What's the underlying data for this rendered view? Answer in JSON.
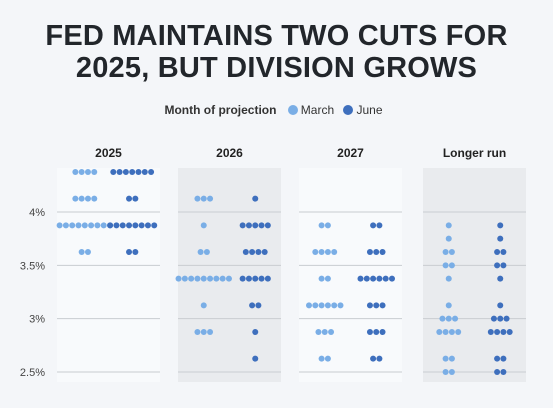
{
  "title_lines": [
    "FED MAINTAINS TWO CUTS FOR",
    "2025, BUT DIVISION GROWS"
  ],
  "legend": {
    "title": "Month of projection",
    "items": [
      {
        "label": "March",
        "color": "#7aaee6"
      },
      {
        "label": "June",
        "color": "#3e6fbd"
      }
    ]
  },
  "chart_data": {
    "type": "scatter",
    "subtype": "dot-plot",
    "title": "FED MAINTAINS TWO CUTS FOR 2025, BUT DIVISION GROWS",
    "legend_title": "Month of projection",
    "legend_placement": "top-center",
    "y_ticks": [
      "4%",
      "3.5%",
      "3%",
      "2.5%"
    ],
    "ylim": [
      2.375,
      4.375
    ],
    "grid": true,
    "series": [
      {
        "name": "March",
        "color": "#7aaee6"
      },
      {
        "name": "June",
        "color": "#3e6fbd"
      }
    ],
    "panels": [
      {
        "label": "2025",
        "shaded": false,
        "March": [
          {
            "y": 4.375,
            "n": 4
          },
          {
            "y": 4.125,
            "n": 4
          },
          {
            "y": 3.875,
            "n": 9
          },
          {
            "y": 3.625,
            "n": 2
          }
        ],
        "June": [
          {
            "y": 4.375,
            "n": 7
          },
          {
            "y": 4.125,
            "n": 2
          },
          {
            "y": 3.875,
            "n": 8
          },
          {
            "y": 3.625,
            "n": 2
          }
        ]
      },
      {
        "label": "2026",
        "shaded": true,
        "March": [
          {
            "y": 4.125,
            "n": 3
          },
          {
            "y": 3.875,
            "n": 1
          },
          {
            "y": 3.625,
            "n": 2
          },
          {
            "y": 3.375,
            "n": 9
          },
          {
            "y": 3.125,
            "n": 1
          },
          {
            "y": 2.875,
            "n": 3
          }
        ],
        "June": [
          {
            "y": 4.125,
            "n": 1
          },
          {
            "y": 3.875,
            "n": 5
          },
          {
            "y": 3.625,
            "n": 4
          },
          {
            "y": 3.375,
            "n": 5
          },
          {
            "y": 3.125,
            "n": 2
          },
          {
            "y": 2.875,
            "n": 1
          },
          {
            "y": 2.625,
            "n": 1
          }
        ]
      },
      {
        "label": "2027",
        "shaded": false,
        "March": [
          {
            "y": 3.875,
            "n": 2
          },
          {
            "y": 3.625,
            "n": 4
          },
          {
            "y": 3.375,
            "n": 2
          },
          {
            "y": 3.125,
            "n": 6
          },
          {
            "y": 2.875,
            "n": 3
          },
          {
            "y": 2.625,
            "n": 2
          }
        ],
        "June": [
          {
            "y": 3.875,
            "n": 2
          },
          {
            "y": 3.625,
            "n": 3
          },
          {
            "y": 3.375,
            "n": 6
          },
          {
            "y": 3.125,
            "n": 3
          },
          {
            "y": 2.875,
            "n": 3
          },
          {
            "y": 2.625,
            "n": 2
          }
        ]
      },
      {
        "label": "Longer run",
        "shaded": true,
        "March": [
          {
            "y": 3.875,
            "n": 1
          },
          {
            "y": 3.75,
            "n": 1
          },
          {
            "y": 3.625,
            "n": 2
          },
          {
            "y": 3.5,
            "n": 2
          },
          {
            "y": 3.375,
            "n": 1
          },
          {
            "y": 3.125,
            "n": 1
          },
          {
            "y": 3.0,
            "n": 3
          },
          {
            "y": 2.875,
            "n": 4
          },
          {
            "y": 2.625,
            "n": 2
          },
          {
            "y": 2.5,
            "n": 2
          }
        ],
        "June": [
          {
            "y": 3.875,
            "n": 1
          },
          {
            "y": 3.75,
            "n": 1
          },
          {
            "y": 3.625,
            "n": 2
          },
          {
            "y": 3.5,
            "n": 2
          },
          {
            "y": 3.375,
            "n": 1
          },
          {
            "y": 3.125,
            "n": 1
          },
          {
            "y": 3.0,
            "n": 3
          },
          {
            "y": 2.875,
            "n": 4
          },
          {
            "y": 2.625,
            "n": 2
          },
          {
            "y": 2.5,
            "n": 2
          }
        ]
      }
    ]
  }
}
